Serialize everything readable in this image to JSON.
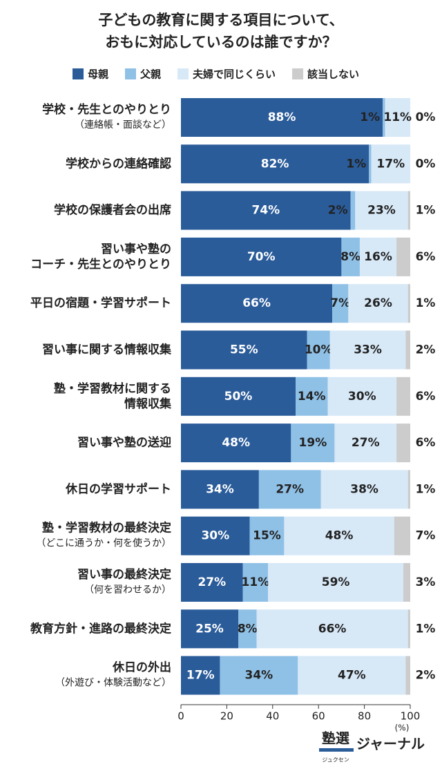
{
  "chart_data": {
    "type": "stacked-barh",
    "title": [
      "子どもの教育に関する項目について、",
      "おもに対応しているのは誰ですか？"
    ],
    "categories": [
      [
        "学校・先生とのやりとり",
        "（連絡帳・面談など）"
      ],
      [
        "学校からの連絡確認"
      ],
      [
        "学校の保護者会の出席"
      ],
      [
        "習い事や塾の",
        "コーチ・先生とのやりとり"
      ],
      [
        "平日の宿題・学習サポート"
      ],
      [
        "習い事に関する情報収集"
      ],
      [
        "塾・学習教材に関する",
        "情報収集"
      ],
      [
        "習い事や塾の送迎"
      ],
      [
        "休日の学習サポート"
      ],
      [
        "塾・学習教材の最終決定",
        "（どこに通うか・何を使うか）"
      ],
      [
        "習い事の最終決定",
        "（何を習わせるか）"
      ],
      [
        "教育方針・進路の最終決定"
      ],
      [
        "休日の外出",
        "（外遊び・体験活動など）"
      ]
    ],
    "series": [
      {
        "name": "母親",
        "color": "#2b5c9a",
        "values": [
          88,
          82,
          74,
          70,
          66,
          55,
          50,
          48,
          34,
          30,
          27,
          25,
          17
        ],
        "value_labels": [
          "88%",
          "82%",
          "74%",
          "70%",
          "66%",
          "55%",
          "50%",
          "48%",
          "34%",
          "30%",
          "27%",
          "25%",
          "17%"
        ]
      },
      {
        "name": "父親",
        "color": "#8fc0e6",
        "values": [
          1,
          1,
          2,
          8,
          7,
          10,
          14,
          19,
          27,
          15,
          11,
          8,
          34
        ],
        "value_labels": [
          "1%",
          "1%",
          "2%",
          "8%",
          "7%",
          "10%",
          "14%",
          "19%",
          "27%",
          "15%",
          "11%",
          "8%",
          "34%"
        ]
      },
      {
        "name": "夫婦で同じくらい",
        "color": "#d7e8f7",
        "values": [
          11,
          17,
          23,
          16,
          26,
          33,
          30,
          27,
          38,
          48,
          59,
          66,
          47
        ],
        "value_labels": [
          "11%",
          "17%",
          "23%",
          "16%",
          "26%",
          "33%",
          "30%",
          "27%",
          "38%",
          "48%",
          "59%",
          "66%",
          "47%"
        ]
      },
      {
        "name": "該当しない",
        "color": "#cccccc",
        "values": [
          0,
          0,
          1,
          6,
          1,
          2,
          6,
          6,
          1,
          7,
          3,
          1,
          2
        ],
        "value_labels": [
          "0%",
          "0%",
          "1%",
          "6%",
          "1%",
          "2%",
          "6%",
          "6%",
          "1%",
          "7%",
          "3%",
          "1%",
          "2%"
        ]
      }
    ],
    "xlim": [
      0,
      100
    ],
    "xticks": [
      0,
      20,
      40,
      60,
      80,
      100
    ],
    "x_unit": "(%)",
    "logo": {
      "main": "塾選",
      "sub": "ジュクセン",
      "suffix": "ジャーナル"
    }
  }
}
